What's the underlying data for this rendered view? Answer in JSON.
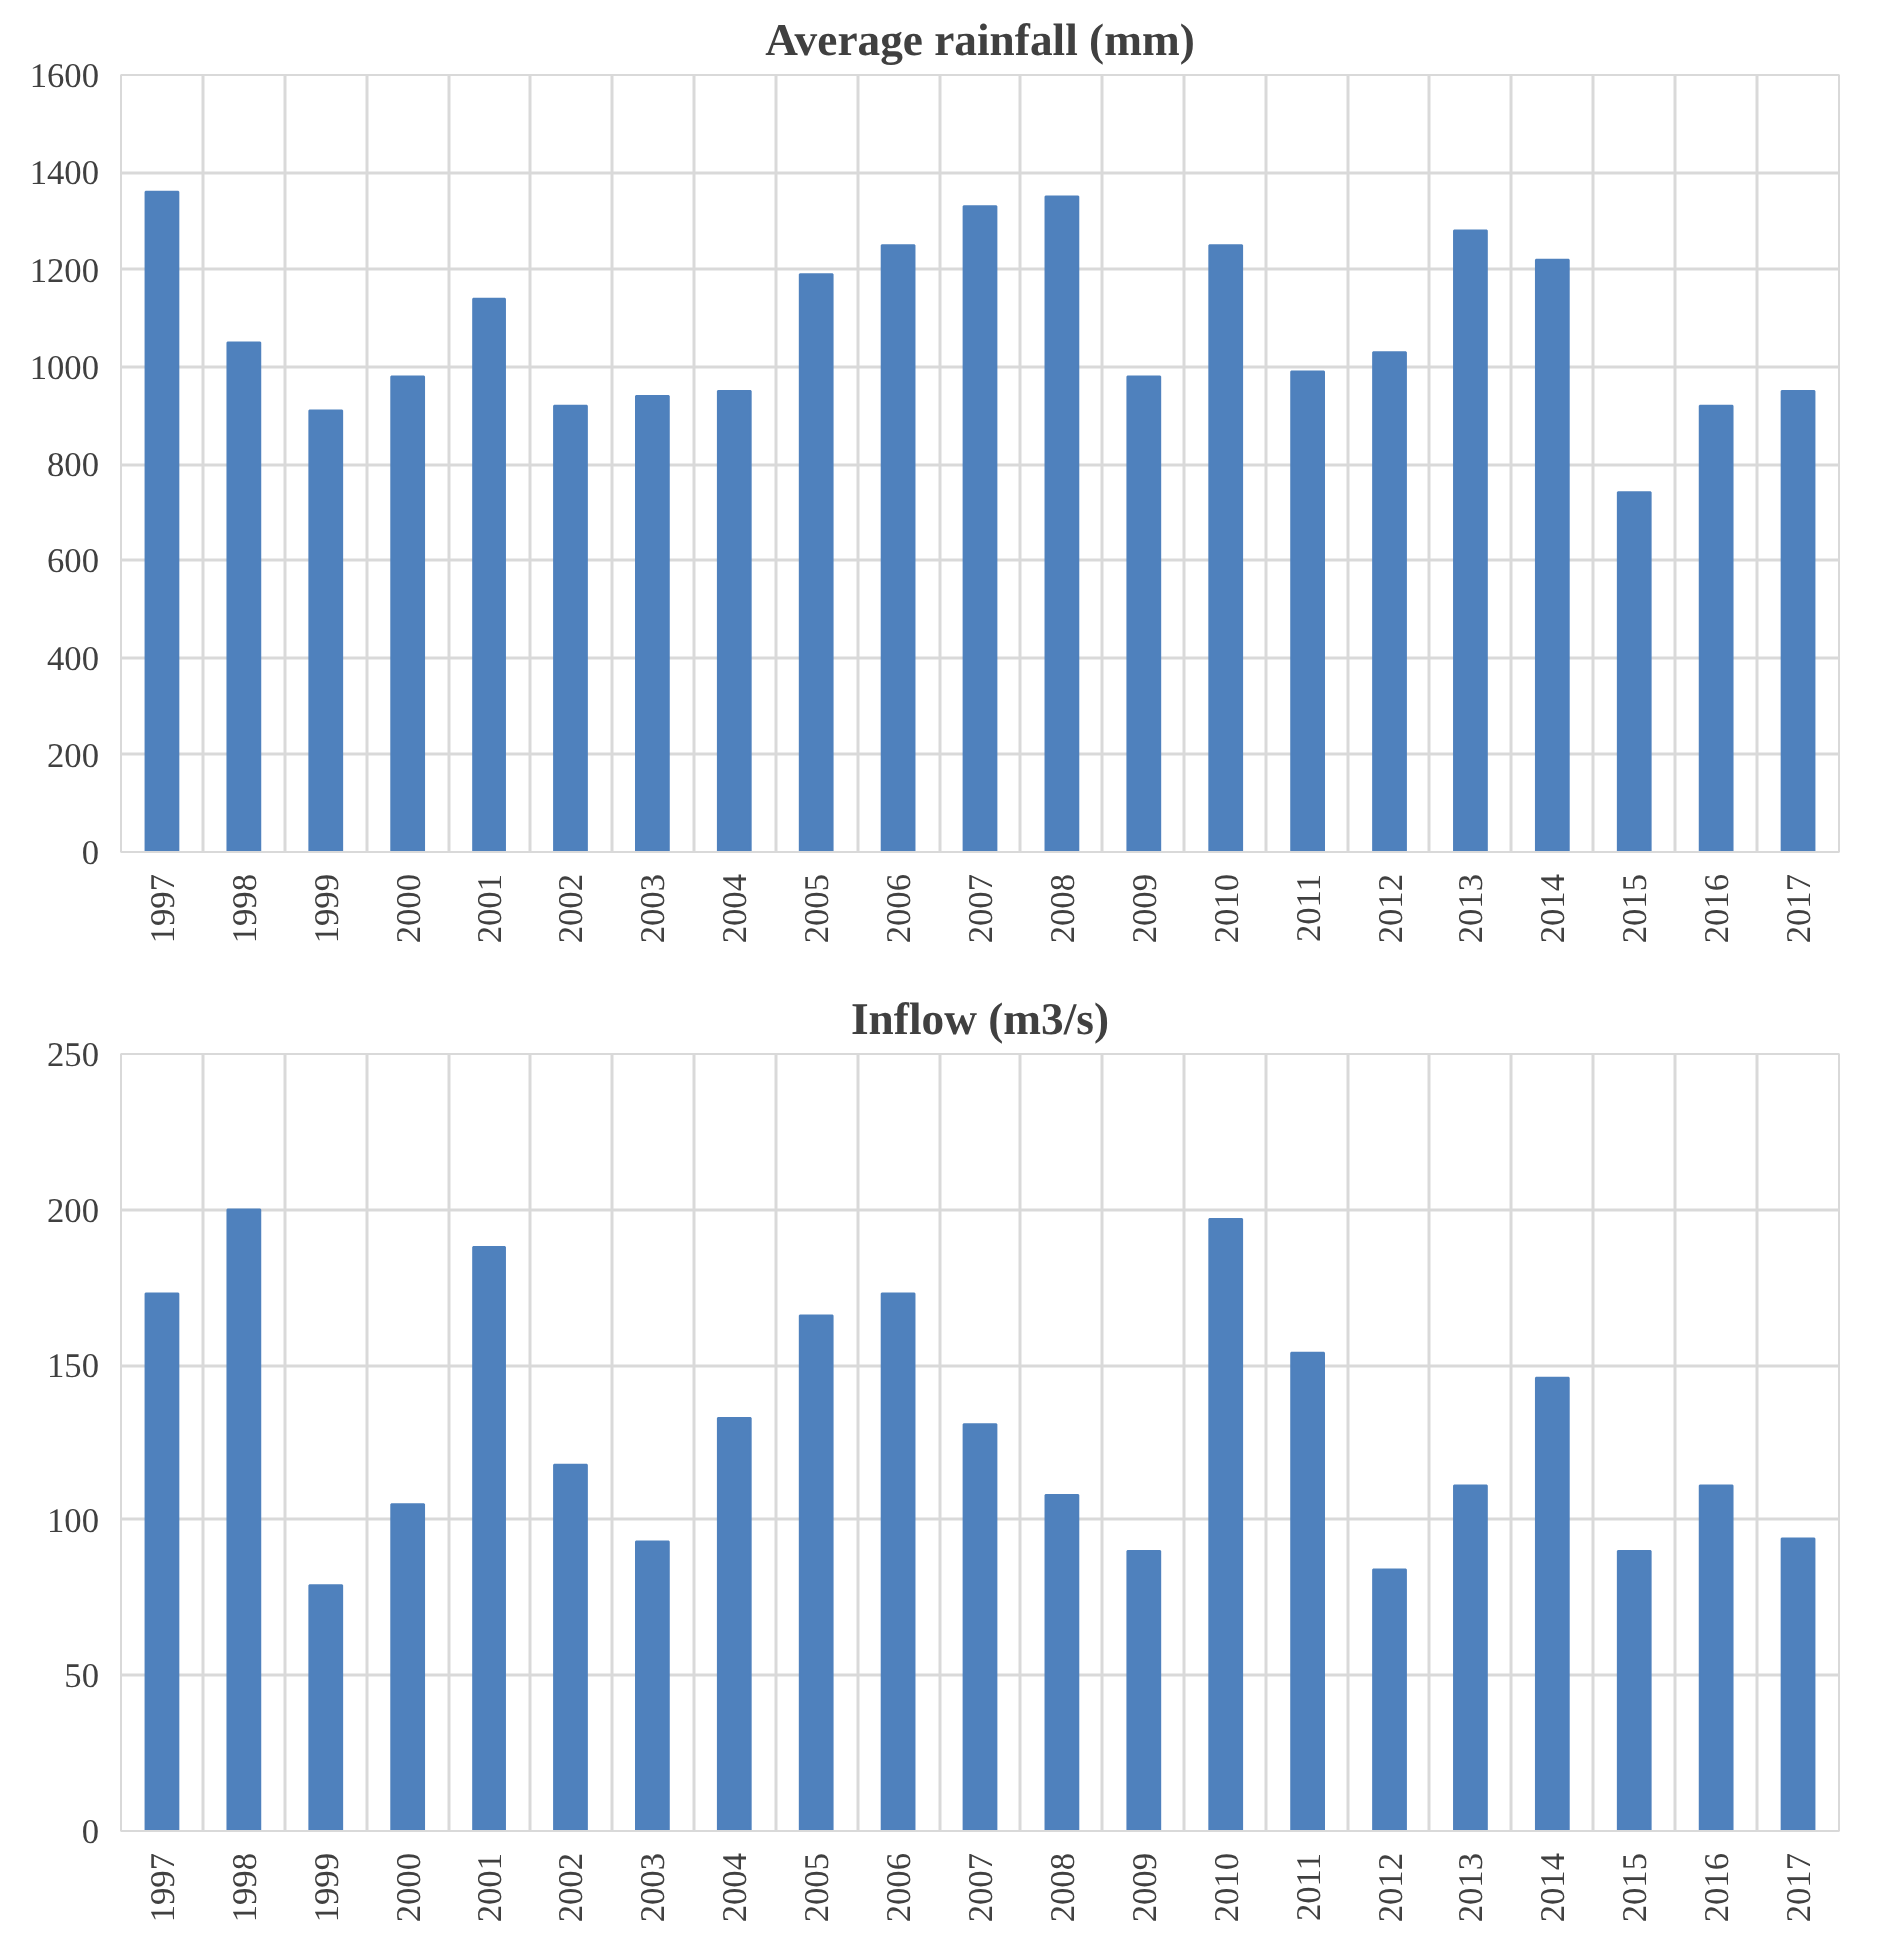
{
  "chart_data": [
    {
      "type": "bar",
      "title": "Average rainfall (mm)",
      "categories": [
        "1997",
        "1998",
        "1999",
        "2000",
        "2001",
        "2002",
        "2003",
        "2004",
        "2005",
        "2006",
        "2007",
        "2008",
        "2009",
        "2010",
        "2011",
        "2012",
        "2013",
        "2014",
        "2015",
        "2016",
        "2017"
      ],
      "values": [
        1360,
        1050,
        910,
        980,
        1140,
        920,
        940,
        950,
        1190,
        1250,
        1330,
        1350,
        980,
        1250,
        990,
        1030,
        1280,
        1220,
        740,
        920,
        950
      ],
      "color": "#4f81bd",
      "ylim": [
        0,
        1600
      ],
      "yticks": [
        0,
        200,
        400,
        600,
        800,
        1000,
        1200,
        1400,
        1600
      ],
      "grid": true
    },
    {
      "type": "bar",
      "title": "Inflow (m3/s)",
      "categories": [
        "1997",
        "1998",
        "1999",
        "2000",
        "2001",
        "2002",
        "2003",
        "2004",
        "2005",
        "2006",
        "2007",
        "2008",
        "2009",
        "2010",
        "2011",
        "2012",
        "2013",
        "2014",
        "2015",
        "2016",
        "2017"
      ],
      "values": [
        173,
        200,
        79,
        105,
        188,
        118,
        93,
        133,
        166,
        173,
        131,
        108,
        90,
        197,
        154,
        84,
        111,
        146,
        90,
        111,
        94
      ],
      "color": "#4f81bd",
      "ylim": [
        0,
        250
      ],
      "yticks": [
        0,
        50,
        100,
        150,
        200,
        250
      ],
      "grid": true
    }
  ]
}
